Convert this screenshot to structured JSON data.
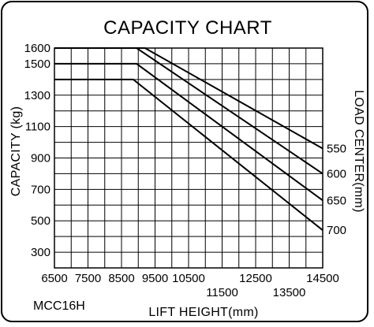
{
  "chart_data": {
    "type": "line",
    "title": "CAPACITY CHART",
    "model": "MCC16H",
    "xlabel": "LIFT HEIGHT(mm)",
    "ylabel": "CAPACITY (kg)",
    "right_label": "LOAD CENTER(mm)",
    "xlim": [
      6500,
      14500
    ],
    "ylim": [
      200,
      1600
    ],
    "x_ticks": [
      6500,
      7500,
      8500,
      9500,
      10500,
      11500,
      12500,
      13500,
      14500
    ],
    "x_tick_labels": [
      "6500",
      "7500",
      "8500",
      "9500",
      "10500",
      "11500",
      "12500",
      "13500",
      "14500"
    ],
    "y_ticks": [
      1600,
      1500,
      1300,
      1100,
      900,
      700,
      500,
      300
    ],
    "y_tick_labels": [
      "1600",
      "1500",
      "1300",
      "1100",
      "900",
      "700",
      "500",
      "300"
    ],
    "grid": true,
    "series": [
      {
        "name": "550",
        "points": [
          [
            6500,
            1600
          ],
          [
            9200,
            1600
          ],
          [
            14500,
            960
          ]
        ]
      },
      {
        "name": "600",
        "points": [
          [
            6500,
            1600
          ],
          [
            8950,
            1600
          ],
          [
            14500,
            800
          ]
        ]
      },
      {
        "name": "650",
        "points": [
          [
            6500,
            1500
          ],
          [
            8950,
            1500
          ],
          [
            14500,
            630
          ]
        ]
      },
      {
        "name": "700",
        "points": [
          [
            6500,
            1400
          ],
          [
            8850,
            1400
          ],
          [
            14500,
            440
          ]
        ]
      }
    ]
  }
}
